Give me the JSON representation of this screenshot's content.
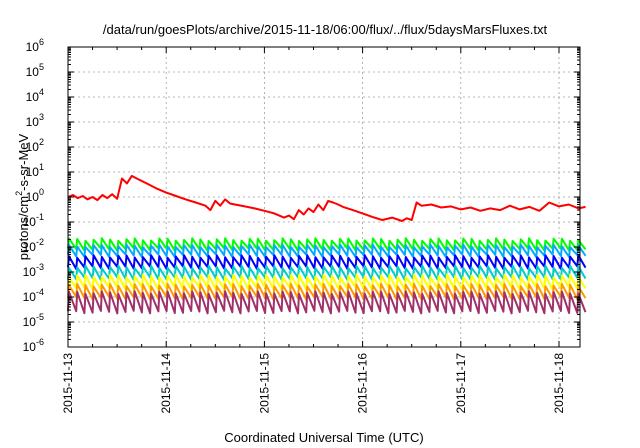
{
  "chart_data": {
    "type": "line",
    "title": "/data/run/goesPlots/archive/2015-11-18/06:00/flux/../flux/5daysMarsFluxes.txt",
    "xlabel": "Coordinated Universal Time (UTC)",
    "ylabel": {
      "base": "protons/cm",
      "sup": "2",
      "rest": "-s-sr-MeV"
    },
    "yscale": "log",
    "ylim_exp": [
      -6,
      6
    ],
    "y_ticks": [
      {
        "base": "10",
        "exp": "-6"
      },
      {
        "base": "10",
        "exp": "-5"
      },
      {
        "base": "10",
        "exp": "-4"
      },
      {
        "base": "10",
        "exp": "-3"
      },
      {
        "base": "10",
        "exp": "-2"
      },
      {
        "base": "10",
        "exp": "-1"
      },
      {
        "base": "10",
        "exp": "0"
      },
      {
        "base": "10",
        "exp": "1"
      },
      {
        "base": "10",
        "exp": "2"
      },
      {
        "base": "10",
        "exp": "3"
      },
      {
        "base": "10",
        "exp": "4"
      },
      {
        "base": "10",
        "exp": "5"
      },
      {
        "base": "10",
        "exp": "6"
      }
    ],
    "x_tick_labels": [
      "2015-11-13",
      "2015-11-14",
      "2015-11-15",
      "2015-11-16",
      "2015-11-17",
      "2015-11-18"
    ],
    "xlim_days": [
      0,
      5.27
    ],
    "grid": true,
    "series": [
      {
        "color": "#ff0000",
        "x": [
          0,
          0.05,
          0.1,
          0.15,
          0.2,
          0.25,
          0.3,
          0.35,
          0.4,
          0.45,
          0.5,
          0.55,
          0.6,
          0.65,
          0.7,
          0.8,
          0.9,
          1.0,
          1.1,
          1.2,
          1.3,
          1.4,
          1.45,
          1.5,
          1.55,
          1.6,
          1.65,
          1.7,
          1.8,
          1.9,
          2.0,
          2.1,
          2.2,
          2.25,
          2.3,
          2.35,
          2.4,
          2.45,
          2.5,
          2.55,
          2.6,
          2.65,
          2.7,
          2.75,
          2.8,
          2.9,
          3.0,
          3.1,
          3.2,
          3.3,
          3.4,
          3.45,
          3.5,
          3.55,
          3.6,
          3.7,
          3.8,
          3.9,
          4.0,
          4.1,
          4.2,
          4.3,
          4.4,
          4.5,
          4.6,
          4.7,
          4.8,
          4.9,
          5.0,
          5.1,
          5.2,
          5.27
        ],
        "values": [
          1.0,
          1.2,
          0.9,
          1.1,
          0.8,
          1.0,
          0.75,
          1.2,
          0.9,
          1.3,
          0.85,
          5.5,
          3.5,
          7.0,
          5.5,
          3.5,
          2.2,
          1.5,
          1.1,
          0.8,
          0.6,
          0.45,
          0.3,
          0.7,
          0.45,
          0.8,
          0.55,
          0.5,
          0.42,
          0.35,
          0.28,
          0.22,
          0.15,
          0.18,
          0.13,
          0.3,
          0.2,
          0.35,
          0.25,
          0.5,
          0.3,
          0.7,
          0.6,
          0.5,
          0.4,
          0.3,
          0.22,
          0.16,
          0.12,
          0.15,
          0.11,
          0.14,
          0.12,
          0.6,
          0.45,
          0.5,
          0.38,
          0.42,
          0.32,
          0.38,
          0.28,
          0.35,
          0.3,
          0.45,
          0.32,
          0.4,
          0.28,
          0.6,
          0.42,
          0.5,
          0.35,
          0.4
        ]
      },
      {
        "color": "#00ff00",
        "peak": 0.02,
        "trough": 0.008
      },
      {
        "color": "#00aaff",
        "peak": 0.011,
        "trough": 0.0045
      },
      {
        "color": "#0000ff",
        "peak": 0.0042,
        "trough": 0.0015
      },
      {
        "color": "#00cccc",
        "peak": 0.0016,
        "trough": 0.00055
      },
      {
        "color": "#ffff00",
        "peak": 0.0007,
        "trough": 0.00022
      },
      {
        "color": "#ff9900",
        "peak": 0.0003,
        "trough": 9e-05
      },
      {
        "color": "#a0306a",
        "peak": 0.00015,
        "trough": 2.5e-05
      }
    ],
    "decay_cycles_per_day": 12
  }
}
